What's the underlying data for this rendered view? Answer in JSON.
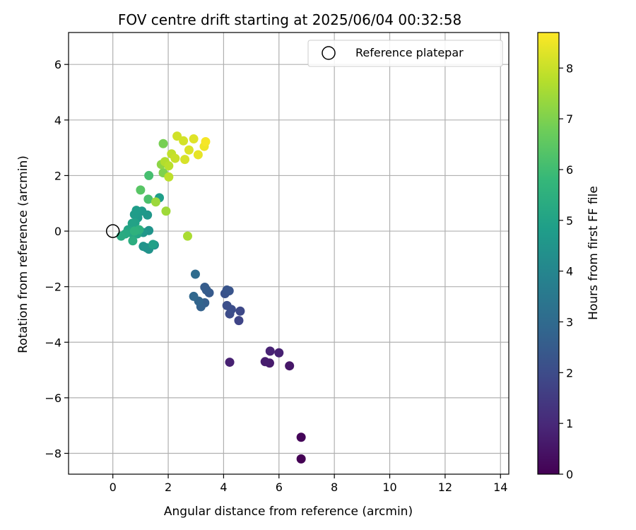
{
  "chart_data": {
    "type": "scatter",
    "title": "FOV centre drift starting at 2025/06/04 00:32:58",
    "xlabel": "Angular distance from reference (arcmin)",
    "ylabel": "Rotation from reference (arcmin)",
    "xlim": [
      -1.6,
      14.3
    ],
    "ylim": [
      -8.75,
      7.15
    ],
    "xticks": [
      0,
      2,
      4,
      6,
      8,
      10,
      12,
      14
    ],
    "yticks": [
      -8,
      -6,
      -4,
      -2,
      0,
      2,
      4,
      6
    ],
    "grid": true,
    "legend": {
      "placement": "top-right",
      "entries": [
        {
          "label": "Reference platepar",
          "marker": "open-circle"
        }
      ]
    },
    "reference_point": {
      "x": 0,
      "y": 0
    },
    "colorbar": {
      "label": "Hours from first FF file",
      "range": [
        0,
        8.7
      ],
      "ticks": [
        0,
        1,
        2,
        3,
        4,
        5,
        6,
        7,
        8
      ],
      "colormap": "viridis"
    },
    "points": [
      {
        "x": 6.8,
        "y": -8.2,
        "h": 0.0
      },
      {
        "x": 6.8,
        "y": -7.42,
        "h": 0.1
      },
      {
        "x": 6.38,
        "y": -4.85,
        "h": 0.55
      },
      {
        "x": 5.66,
        "y": -4.75,
        "h": 0.65
      },
      {
        "x": 5.5,
        "y": -4.7,
        "h": 0.7
      },
      {
        "x": 4.22,
        "y": -4.72,
        "h": 0.8
      },
      {
        "x": 6.0,
        "y": -4.38,
        "h": 0.8
      },
      {
        "x": 5.68,
        "y": -4.32,
        "h": 0.85
      },
      {
        "x": 4.55,
        "y": -3.22,
        "h": 1.8
      },
      {
        "x": 4.6,
        "y": -2.88,
        "h": 1.9
      },
      {
        "x": 4.22,
        "y": -2.98,
        "h": 2.0
      },
      {
        "x": 4.28,
        "y": -2.82,
        "h": 2.05
      },
      {
        "x": 4.12,
        "y": -2.68,
        "h": 2.1
      },
      {
        "x": 4.05,
        "y": -2.25,
        "h": 2.2
      },
      {
        "x": 4.2,
        "y": -2.15,
        "h": 2.25
      },
      {
        "x": 4.12,
        "y": -2.12,
        "h": 2.3
      },
      {
        "x": 3.48,
        "y": -2.22,
        "h": 2.45
      },
      {
        "x": 3.38,
        "y": -2.12,
        "h": 2.5
      },
      {
        "x": 3.32,
        "y": -2.02,
        "h": 2.55
      },
      {
        "x": 3.32,
        "y": -2.58,
        "h": 2.6
      },
      {
        "x": 3.18,
        "y": -2.72,
        "h": 2.7
      },
      {
        "x": 3.1,
        "y": -2.52,
        "h": 2.8
      },
      {
        "x": 2.92,
        "y": -2.35,
        "h": 2.9
      },
      {
        "x": 2.98,
        "y": -1.55,
        "h": 3.05
      },
      {
        "x": 1.5,
        "y": -0.5,
        "h": 4.3
      },
      {
        "x": 1.22,
        "y": -0.6,
        "h": 4.4
      },
      {
        "x": 1.3,
        "y": -0.65,
        "h": 4.45
      },
      {
        "x": 1.1,
        "y": -0.55,
        "h": 4.5
      },
      {
        "x": 1.3,
        "y": 0.02,
        "h": 4.5
      },
      {
        "x": 1.1,
        "y": -0.05,
        "h": 4.6
      },
      {
        "x": 1.25,
        "y": 0.58,
        "h": 4.6
      },
      {
        "x": 1.05,
        "y": 0.72,
        "h": 4.65
      },
      {
        "x": 0.9,
        "y": 0.48,
        "h": 4.7
      },
      {
        "x": 0.78,
        "y": 0.6,
        "h": 4.75
      },
      {
        "x": 0.85,
        "y": 0.75,
        "h": 4.8
      },
      {
        "x": 1.68,
        "y": 1.2,
        "h": 4.85
      },
      {
        "x": 1.45,
        "y": -0.48,
        "h": 4.9
      },
      {
        "x": 0.8,
        "y": 0.3,
        "h": 4.95
      },
      {
        "x": 0.7,
        "y": 0.28,
        "h": 5.0
      },
      {
        "x": 0.55,
        "y": 0.05,
        "h": 5.05
      },
      {
        "x": 0.88,
        "y": -0.1,
        "h": 5.1
      },
      {
        "x": 0.75,
        "y": -0.12,
        "h": 5.15
      },
      {
        "x": 0.62,
        "y": -0.05,
        "h": 5.2
      },
      {
        "x": 0.45,
        "y": -0.1,
        "h": 5.25
      },
      {
        "x": 0.3,
        "y": -0.18,
        "h": 5.3
      },
      {
        "x": 0.72,
        "y": -0.35,
        "h": 5.4
      },
      {
        "x": 0.95,
        "y": 0.05,
        "h": 5.5
      },
      {
        "x": 0.78,
        "y": 0.0,
        "h": 5.55
      },
      {
        "x": 1.3,
        "y": 2.0,
        "h": 6.1
      },
      {
        "x": 1.28,
        "y": 1.15,
        "h": 6.2
      },
      {
        "x": 1.0,
        "y": 1.48,
        "h": 6.4
      },
      {
        "x": 1.82,
        "y": 3.15,
        "h": 6.9
      },
      {
        "x": 1.82,
        "y": 2.1,
        "h": 7.0
      },
      {
        "x": 1.75,
        "y": 2.4,
        "h": 7.2
      },
      {
        "x": 1.55,
        "y": 1.05,
        "h": 7.4
      },
      {
        "x": 1.92,
        "y": 0.72,
        "h": 7.45
      },
      {
        "x": 2.7,
        "y": -0.18,
        "h": 7.6
      },
      {
        "x": 1.88,
        "y": 2.5,
        "h": 7.7
      },
      {
        "x": 2.02,
        "y": 2.35,
        "h": 7.8
      },
      {
        "x": 2.02,
        "y": 1.95,
        "h": 7.85
      },
      {
        "x": 2.12,
        "y": 2.78,
        "h": 7.9
      },
      {
        "x": 2.25,
        "y": 2.62,
        "h": 8.0
      },
      {
        "x": 2.32,
        "y": 3.42,
        "h": 8.1
      },
      {
        "x": 2.55,
        "y": 3.25,
        "h": 8.15
      },
      {
        "x": 2.6,
        "y": 2.58,
        "h": 8.2
      },
      {
        "x": 2.75,
        "y": 2.92,
        "h": 8.25
      },
      {
        "x": 2.92,
        "y": 3.32,
        "h": 8.3
      },
      {
        "x": 3.08,
        "y": 2.75,
        "h": 8.4
      },
      {
        "x": 3.3,
        "y": 3.05,
        "h": 8.5
      },
      {
        "x": 3.35,
        "y": 3.22,
        "h": 8.6
      }
    ]
  }
}
